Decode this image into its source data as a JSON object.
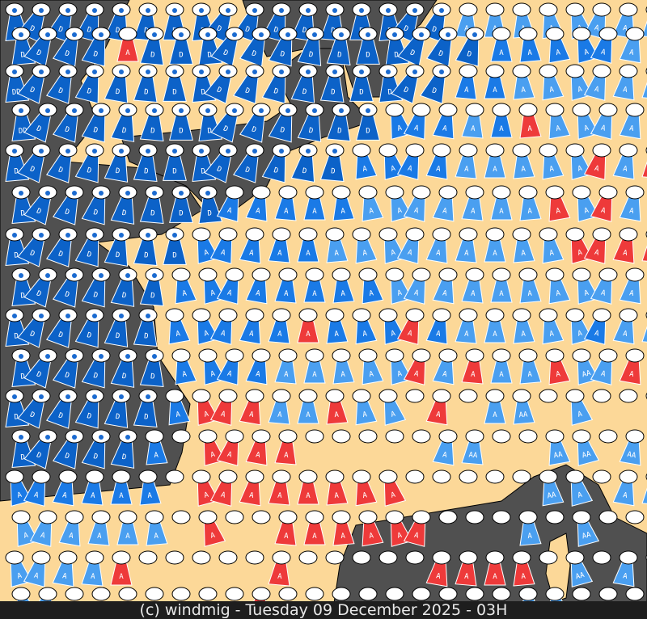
{
  "map": {
    "land_color": "#fcd898",
    "sea_color": "#505050",
    "symbol_colors": {
      "D": "#0c62c8",
      "A": "#1a7ae6",
      "a": "#4a9ff0",
      "r": "#ee3a3a"
    },
    "symbol_labels": {
      "D": "D",
      "A": "A",
      "a": "A",
      "r": "A",
      "d": "DD",
      "w": "AA"
    },
    "rows": [
      "DDDDDDDDDDDDDDDDDaaaaaaaa",
      "DDDDrDDDDDDDDDDDDDAAAAAaa",
      "dDDDDDDDDDDDDDDDDAAaaaaaa",
      "dDDDDDDDDDDDDDAAAaAraaaaa",
      "DDDDDDDDDDDDDAAAAaaaaarar",
      "DDDDDDDDAAAAAaaaaaaararaa",
      "DDDDDDDAAAAAaaaaaaaaarrrr",
      "DDDDDDAAAAAAAAaaaaaaaaaaa",
      "DDDDDDAAAAArAAArAaaaaaAaw",
      "DDDDDDAAAAaaaaararaarwarr",
      "DDDDDDArrraaraa.r.aw.a...",
      "DDDDDA.rrrr.....aw..ww.ww",
      "AAAAAA.rrrrrrrr.....wa.aa",
      "aaaaaa.r..rrrrrr...a.w...",
      "aaaar.....r.....rrrr.w.a.",
      "aa.......r.........ww...."
    ]
  },
  "footer": {
    "text": "(c) windmig - Tuesday 09 December 2025 - 03H"
  }
}
